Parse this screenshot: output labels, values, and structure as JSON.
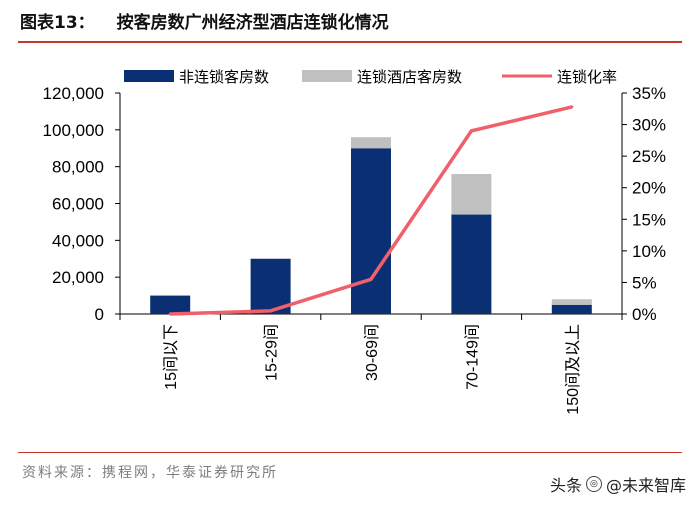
{
  "header": {
    "figure_label": "图表13：",
    "title": "按客房数广州经济型酒店连锁化情况"
  },
  "footer": {
    "source": "资料来源：携程网，华泰证券研究所",
    "watermark_prefix": "头条",
    "watermark_name": "@未来智库"
  },
  "chart_data": {
    "type": "bar",
    "stacked": true,
    "categories": [
      "15间以下",
      "15-29间",
      "30-69间",
      "70-149间",
      "150间及以上"
    ],
    "series": [
      {
        "name": "非连锁客房数",
        "kind": "bar",
        "axis": "left",
        "color": "#0b2f73",
        "values": [
          10000,
          30000,
          90000,
          54000,
          5000
        ]
      },
      {
        "name": "连锁酒店客房数",
        "kind": "bar",
        "axis": "left",
        "color": "#c0c0c0",
        "values": [
          0,
          0,
          6000,
          22000,
          3000
        ]
      },
      {
        "name": "连锁化率",
        "kind": "line",
        "axis": "right",
        "color": "#f0606a",
        "values": [
          0.0,
          0.5,
          5.5,
          29.0,
          32.8
        ]
      }
    ],
    "y_left": {
      "min": 0,
      "max": 120000,
      "step": 20000,
      "tick_labels": [
        "0",
        "20,000",
        "40,000",
        "60,000",
        "80,000",
        "100,000",
        "120,000"
      ]
    },
    "y_right": {
      "min": 0,
      "max": 35,
      "step": 5,
      "tick_labels": [
        "0%",
        "5%",
        "10%",
        "15%",
        "20%",
        "25%",
        "30%",
        "35%"
      ]
    },
    "legend_position": "top",
    "grid": false
  }
}
